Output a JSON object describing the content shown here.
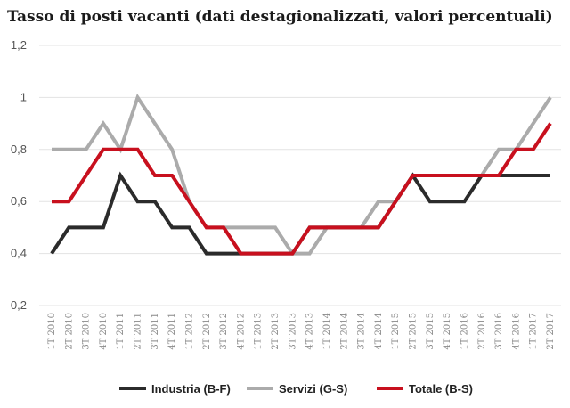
{
  "chart_data": {
    "type": "line",
    "title": "Tasso di posti vacanti (dati destagionalizzati, valori percentuali)",
    "xlabel": "",
    "ylabel": "",
    "ylim": [
      0.2,
      1.2
    ],
    "yticks": [
      "0,2",
      "0,4",
      "0,6",
      "0,8",
      "1",
      "1,2"
    ],
    "ytick_values": [
      0.2,
      0.4,
      0.6,
      0.8,
      1.0,
      1.2
    ],
    "grid": "horizontal",
    "legend_position": "bottom",
    "categories": [
      "1T 2010",
      "2T 2010",
      "3T 2010",
      "4T 2010",
      "1T 2011",
      "2T 2011",
      "3T 2011",
      "4T 2011",
      "1T 2012",
      "2T 2012",
      "3T 2012",
      "4T 2012",
      "1T 2013",
      "2T 2013",
      "3T 2013",
      "4T 2013",
      "1T 2014",
      "2T 2014",
      "3T 2014",
      "4T 2014",
      "1T 2015",
      "2T 2015",
      "3T 2015",
      "4T 2015",
      "1T 2016",
      "2T 2016",
      "3T 2016",
      "4T 2016",
      "1T 2017",
      "2T 2017"
    ],
    "series": [
      {
        "name": "Industria (B-F)",
        "color": "#2b2b2b",
        "values": [
          0.4,
          0.5,
          0.5,
          0.5,
          0.7,
          0.6,
          0.6,
          0.5,
          0.5,
          0.4,
          0.4,
          0.4,
          0.4,
          0.4,
          0.4,
          0.5,
          0.5,
          0.5,
          0.5,
          0.5,
          0.6,
          0.7,
          0.6,
          0.6,
          0.6,
          0.7,
          0.7,
          0.7,
          0.7,
          0.7
        ]
      },
      {
        "name": "Servizi (G-S)",
        "color": "#ababab",
        "values": [
          0.8,
          0.8,
          0.8,
          0.9,
          0.8,
          1.0,
          0.9,
          0.8,
          0.6,
          0.5,
          0.5,
          0.5,
          0.5,
          0.5,
          0.4,
          0.4,
          0.5,
          0.5,
          0.5,
          0.6,
          0.6,
          0.7,
          0.7,
          0.7,
          0.7,
          0.7,
          0.8,
          0.8,
          0.9,
          1.0
        ]
      },
      {
        "name": "Totale (B-S)",
        "color": "#c8101e",
        "values": [
          0.6,
          0.6,
          0.7,
          0.8,
          0.8,
          0.8,
          0.7,
          0.7,
          0.6,
          0.5,
          0.5,
          0.4,
          0.4,
          0.4,
          0.4,
          0.5,
          0.5,
          0.5,
          0.5,
          0.5,
          0.6,
          0.7,
          0.7,
          0.7,
          0.7,
          0.7,
          0.7,
          0.8,
          0.8,
          0.9
        ]
      }
    ]
  }
}
